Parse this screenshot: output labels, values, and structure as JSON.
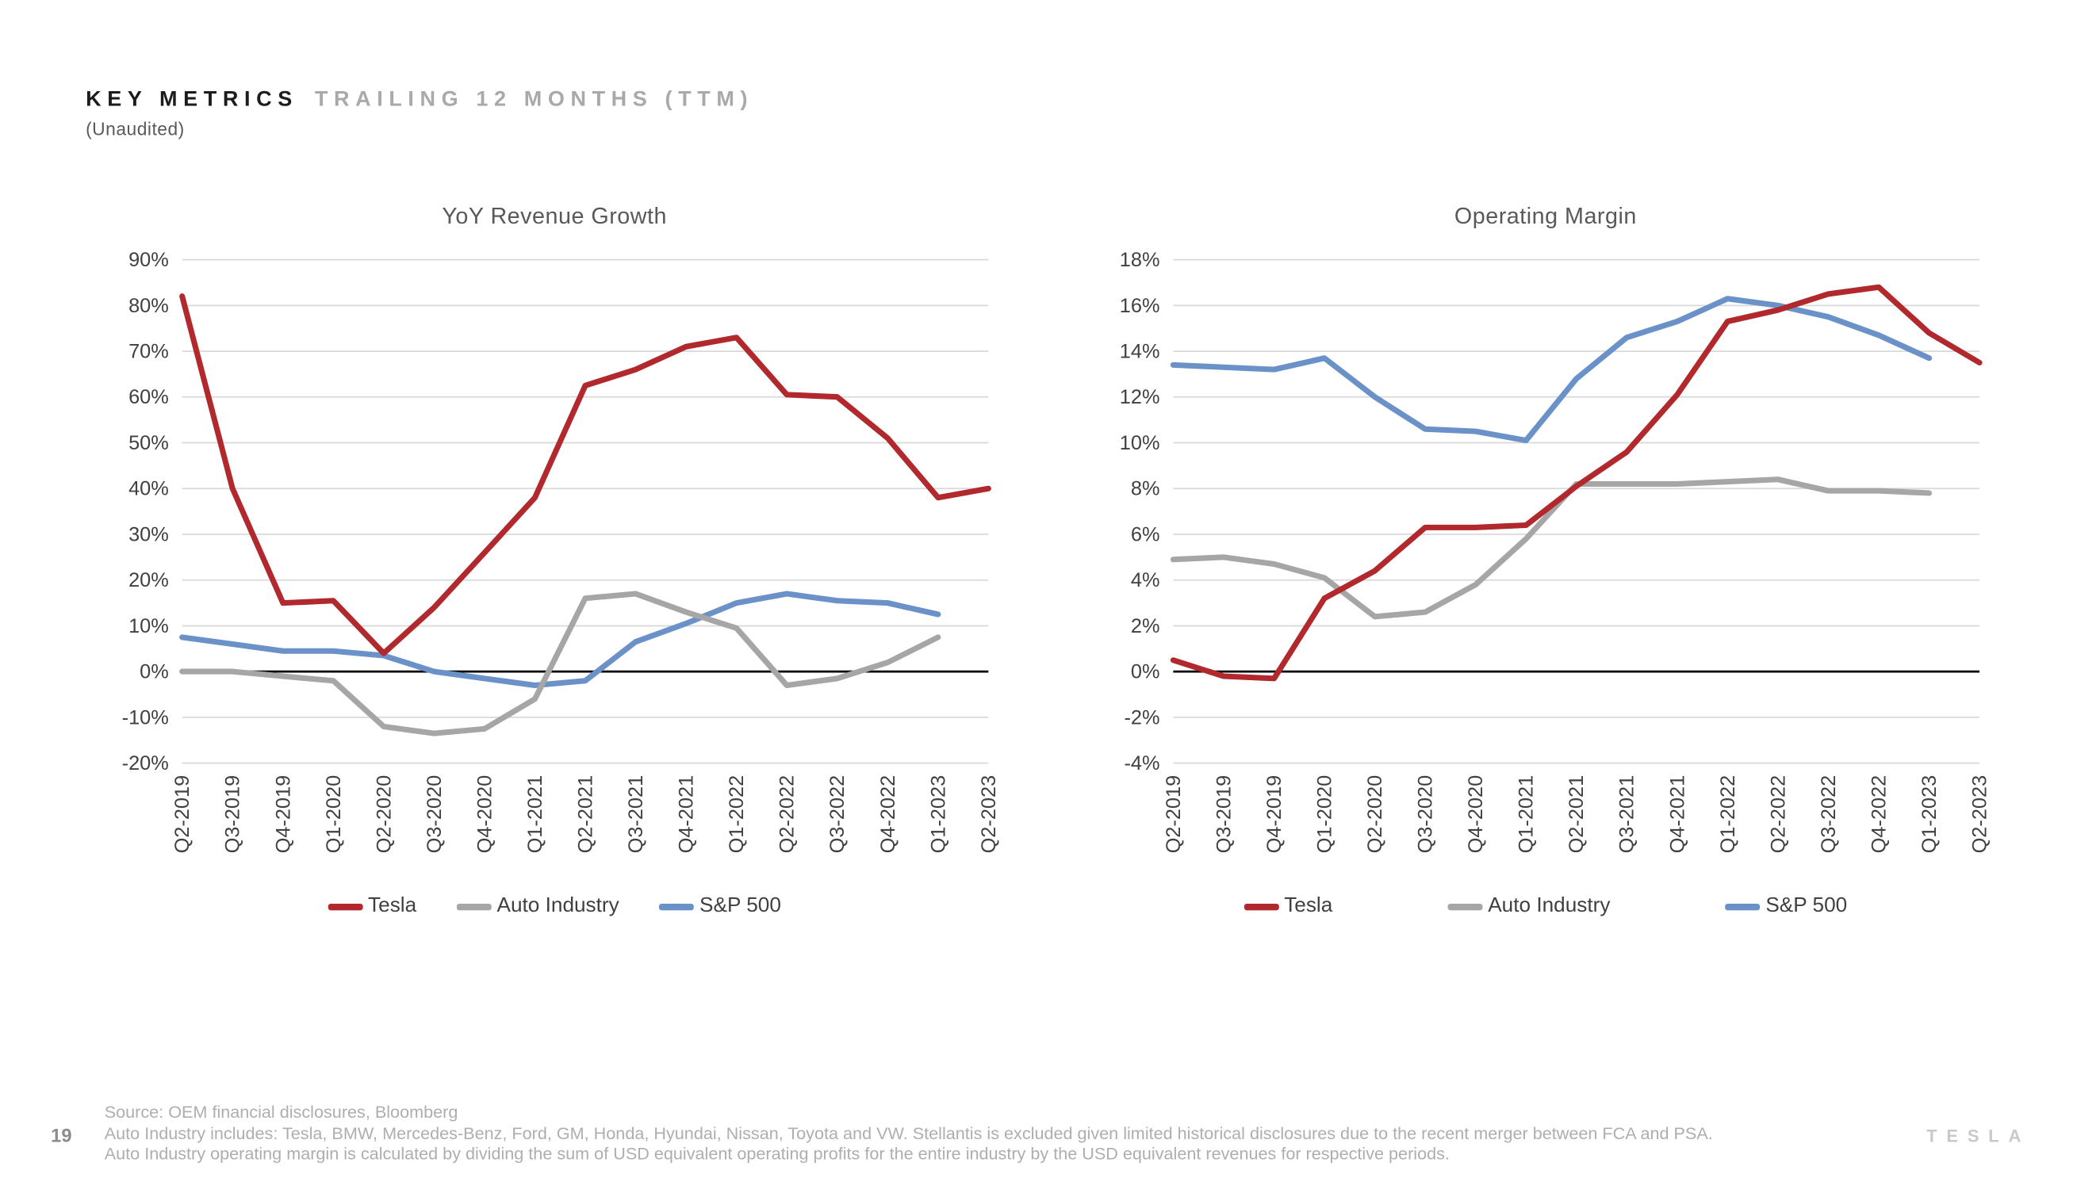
{
  "header": {
    "title_primary": "KEY METRICS",
    "title_secondary": "TRAILING 12 MONTHS (TTM)",
    "subtitle": "(Unaudited)"
  },
  "chart_data": [
    {
      "type": "line",
      "title": "YoY Revenue Growth",
      "xlabel": "",
      "ylabel": "",
      "ylim": [
        -20,
        90
      ],
      "ytick_step": 10,
      "tick_suffix": "%",
      "grid": true,
      "legend_position": "bottom",
      "categories": [
        "Q2-2019",
        "Q3-2019",
        "Q4-2019",
        "Q1-2020",
        "Q2-2020",
        "Q3-2020",
        "Q4-2020",
        "Q1-2021",
        "Q2-2021",
        "Q3-2021",
        "Q4-2021",
        "Q1-2022",
        "Q2-2022",
        "Q3-2022",
        "Q4-2022",
        "Q1-2023",
        "Q2-2023"
      ],
      "series": [
        {
          "name": "Tesla",
          "color": "#b1282d",
          "values": [
            82,
            40,
            15,
            15.5,
            4,
            14,
            26,
            38,
            62.5,
            66,
            71,
            73,
            60.5,
            60,
            51,
            38,
            40
          ]
        },
        {
          "name": "Auto Industry",
          "color": "#a6a6a6",
          "values": [
            0,
            0,
            -1,
            -2,
            -12,
            -13.5,
            -12.5,
            -6,
            16,
            17,
            13,
            9.5,
            -3,
            -1.5,
            2,
            7.5,
            null
          ]
        },
        {
          "name": "S&P 500",
          "color": "#6a92c8",
          "values": [
            7.5,
            6,
            4.5,
            4.5,
            3.5,
            0,
            -1.5,
            -3,
            -2,
            6.5,
            10.5,
            15,
            17,
            15.5,
            15,
            12.5,
            null
          ]
        }
      ]
    },
    {
      "type": "line",
      "title": "Operating Margin",
      "xlabel": "",
      "ylabel": "",
      "ylim": [
        -4,
        18
      ],
      "ytick_step": 2,
      "tick_suffix": "%",
      "grid": true,
      "legend_position": "bottom",
      "categories": [
        "Q2-2019",
        "Q3-2019",
        "Q4-2019",
        "Q1-2020",
        "Q2-2020",
        "Q3-2020",
        "Q4-2020",
        "Q1-2021",
        "Q2-2021",
        "Q3-2021",
        "Q4-2021",
        "Q1-2022",
        "Q2-2022",
        "Q3-2022",
        "Q4-2022",
        "Q1-2023",
        "Q2-2023"
      ],
      "series": [
        {
          "name": "Tesla",
          "color": "#b1282d",
          "values": [
            0.5,
            -0.2,
            -0.3,
            3.2,
            4.4,
            6.3,
            6.3,
            6.4,
            8.1,
            9.6,
            12.1,
            15.3,
            15.8,
            16.5,
            16.8,
            14.8,
            13.5
          ]
        },
        {
          "name": "Auto Industry",
          "color": "#a6a6a6",
          "values": [
            4.9,
            5.0,
            4.7,
            4.1,
            2.4,
            2.6,
            3.8,
            5.8,
            8.2,
            8.2,
            8.2,
            8.3,
            8.4,
            7.9,
            7.9,
            7.8,
            null
          ]
        },
        {
          "name": "S&P 500",
          "color": "#6a92c8",
          "values": [
            13.4,
            13.3,
            13.2,
            13.7,
            12.0,
            10.6,
            10.5,
            10.1,
            12.8,
            14.6,
            15.3,
            16.3,
            16.0,
            15.5,
            14.7,
            13.7,
            null
          ]
        }
      ]
    }
  ],
  "footer": {
    "page_number": "19",
    "source_lines": [
      "Source: OEM financial disclosures, Bloomberg",
      "Auto Industry includes: Tesla, BMW, Mercedes-Benz, Ford, GM, Honda, Hyundai, Nissan, Toyota and VW. Stellantis is excluded given limited historical disclosures due to the recent merger between FCA and PSA.",
      "Auto Industry operating margin is calculated by dividing the sum of USD equivalent operating profits for the entire industry by the USD equivalent revenues for respective periods."
    ],
    "brand": "TESLA"
  },
  "colors": {
    "tesla": "#b1282d",
    "auto_industry": "#a6a6a6",
    "sp500": "#6a92c8",
    "gridline": "#d9d9d9",
    "zero_axis": "#000000"
  }
}
